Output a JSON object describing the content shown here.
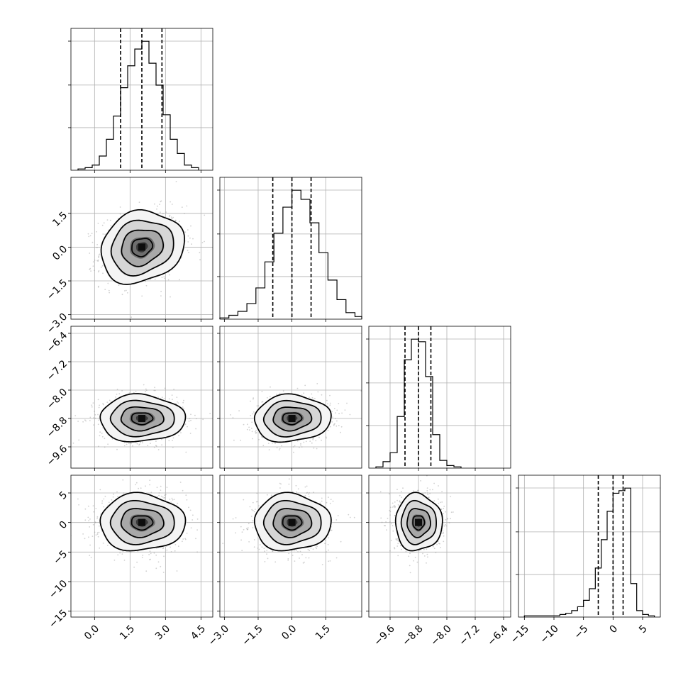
{
  "chart_data": {
    "type": "corner",
    "dimensions": 4,
    "grid": true,
    "panels": {
      "hist_0": {
        "type": "histogram",
        "xlim": [
          -1.0,
          5.0
        ],
        "bin_edges": [
          -0.7,
          -0.4,
          -0.1,
          0.2,
          0.5,
          0.8,
          1.1,
          1.4,
          1.7,
          2.0,
          2.3,
          2.6,
          2.9,
          3.2,
          3.5,
          3.8,
          4.1,
          4.4
        ],
        "counts": [
          0.01,
          0.02,
          0.04,
          0.11,
          0.24,
          0.42,
          0.64,
          0.81,
          0.94,
          1.0,
          0.83,
          0.66,
          0.43,
          0.24,
          0.13,
          0.04,
          0.02
        ],
        "quantiles": [
          1.1,
          2.0,
          2.85
        ]
      },
      "hist_1": {
        "type": "histogram",
        "xlim": [
          -3.2,
          3.1
        ],
        "bin_edges": [
          -3.2,
          -2.8,
          -2.4,
          -2.0,
          -1.6,
          -1.2,
          -0.8,
          -0.4,
          0.0,
          0.4,
          0.8,
          1.2,
          1.6,
          2.0,
          2.4,
          2.8,
          3.1
        ],
        "counts": [
          0.01,
          0.03,
          0.06,
          0.12,
          0.24,
          0.44,
          0.66,
          0.86,
          0.99,
          0.92,
          0.74,
          0.51,
          0.3,
          0.15,
          0.05,
          0.02
        ],
        "quantiles": [
          -0.85,
          0.0,
          0.85
        ]
      },
      "hist_2": {
        "type": "histogram",
        "xlim": [
          -10.2,
          -6.2
        ],
        "bin_edges": [
          -10.0,
          -9.8,
          -9.6,
          -9.4,
          -9.2,
          -9.0,
          -8.8,
          -8.6,
          -8.4,
          -8.2,
          -8.0,
          -7.8,
          -7.6
        ],
        "counts": [
          0.01,
          0.05,
          0.12,
          0.4,
          0.84,
          1.0,
          0.98,
          0.71,
          0.26,
          0.06,
          0.02,
          0.01
        ],
        "quantiles": [
          -9.18,
          -8.8,
          -8.45
        ]
      },
      "hist_3": {
        "type": "histogram",
        "xlim": [
          -16.0,
          8.0
        ],
        "bin_edges": [
          -15.0,
          -14.0,
          -13.0,
          -12.0,
          -11.0,
          -10.0,
          -9.0,
          -8.0,
          -7.0,
          -6.0,
          -5.0,
          -4.0,
          -3.0,
          -2.0,
          -1.0,
          0.0,
          1.0,
          2.0,
          3.0,
          4.0,
          5.0,
          6.0,
          7.0
        ],
        "counts": [
          0.01,
          0.01,
          0.01,
          0.01,
          0.01,
          0.01,
          0.02,
          0.03,
          0.05,
          0.08,
          0.13,
          0.22,
          0.38,
          0.6,
          0.82,
          0.96,
          0.98,
          1.0,
          0.26,
          0.05,
          0.02,
          0.01
        ],
        "quantiles": [
          -2.5,
          0.0,
          1.7
        ]
      },
      "joint_1_0": {
        "type": "density_contour",
        "xlim": [
          -1.0,
          5.0
        ],
        "ylim": [
          -3.2,
          3.1
        ],
        "center": [
          2.0,
          0.0
        ],
        "sigma": [
          0.88,
          0.8
        ],
        "rho": 0.15
      },
      "joint_2_0": {
        "type": "density_contour",
        "xlim": [
          -1.0,
          5.0
        ],
        "ylim": [
          -10.2,
          -6.2
        ],
        "center": [
          2.0,
          -8.8
        ],
        "sigma": [
          0.9,
          0.33
        ],
        "rho": 0.0
      },
      "joint_2_1": {
        "type": "density_contour",
        "xlim": [
          -3.2,
          3.1
        ],
        "ylim": [
          -10.2,
          -6.2
        ],
        "center": [
          0.0,
          -8.8
        ],
        "sigma": [
          0.85,
          0.33
        ],
        "rho": 0.05
      },
      "joint_3_0": {
        "type": "density_contour",
        "xlim": [
          -1.0,
          5.0
        ],
        "ylim": [
          -16.0,
          8.0
        ],
        "center": [
          2.0,
          0.0
        ],
        "sigma": [
          0.9,
          2.4
        ],
        "rho": 0.0
      },
      "joint_3_1": {
        "type": "density_contour",
        "xlim": [
          -3.2,
          3.1
        ],
        "ylim": [
          -16.0,
          8.0
        ],
        "center": [
          0.0,
          0.0
        ],
        "sigma": [
          0.85,
          2.4
        ],
        "rho": 0.0
      },
      "joint_3_2": {
        "type": "density_contour",
        "xlim": [
          -10.2,
          -6.2
        ],
        "ylim": [
          -16.0,
          8.0
        ],
        "center": [
          -8.8,
          0.0
        ],
        "sigma": [
          0.33,
          2.4
        ],
        "rho": 0.0
      }
    },
    "x_ticks": [
      [
        0.0,
        1.5,
        3.0,
        4.5
      ],
      [
        -3.0,
        -1.5,
        0.0,
        1.5
      ],
      [
        -9.6,
        -8.8,
        -8.0,
        -7.2,
        -6.4
      ],
      [
        -15,
        -10,
        -5,
        0,
        5
      ]
    ],
    "x_tick_labels": [
      [
        "0.0",
        "1.5",
        "3.0",
        "4.5"
      ],
      [
        "−3.0",
        "−1.5",
        "0.0",
        "1.5"
      ],
      [
        "−9.6",
        "−8.8",
        "−8.0",
        "−7.2",
        "−6.4"
      ],
      [
        "−15",
        "−10",
        "−5",
        "0",
        "5"
      ]
    ],
    "y_ticks": [
      [],
      [
        1.5,
        0.0,
        -1.5,
        -3.0
      ],
      [
        -6.4,
        -7.2,
        -8.0,
        -8.8,
        -9.6
      ],
      [
        5,
        0,
        -5,
        -10,
        -15
      ]
    ],
    "y_tick_labels": [
      [],
      [
        "1.5",
        "0.0",
        "−1.5",
        "−3.0"
      ],
      [
        "−6.4",
        "−7.2",
        "−8.0",
        "−8.8",
        "−9.6"
      ],
      [
        "5",
        "0",
        "−5",
        "−10",
        "−15"
      ]
    ]
  }
}
